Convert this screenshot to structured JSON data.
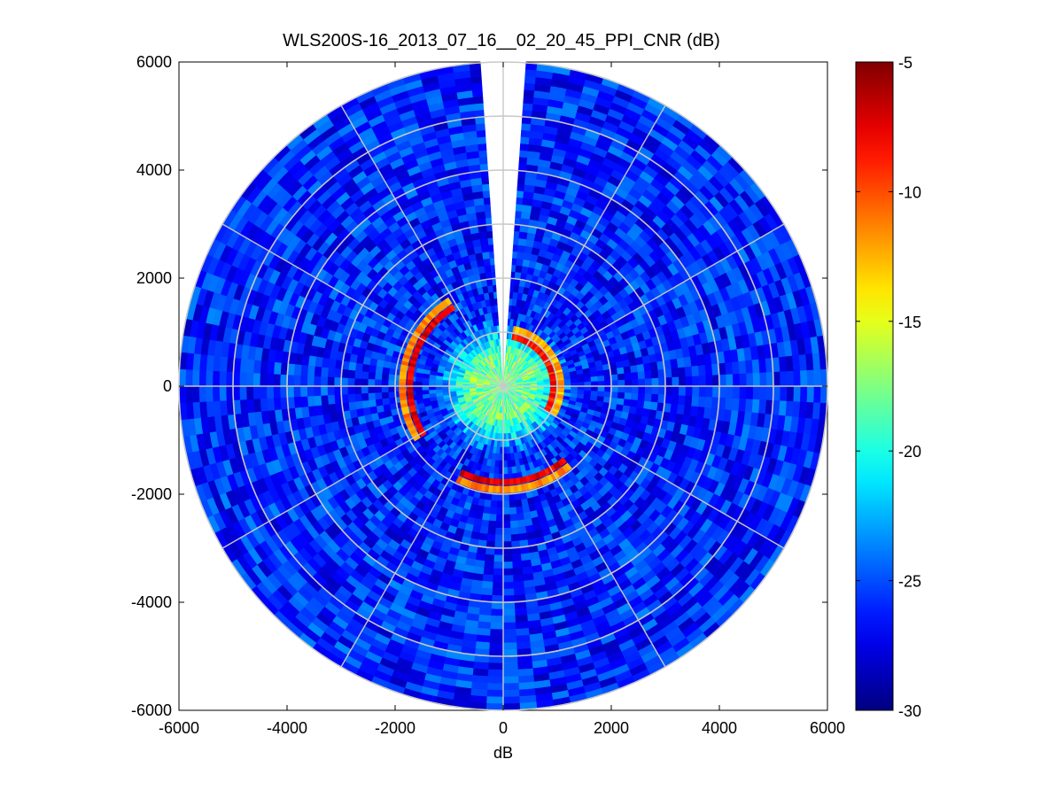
{
  "chart_data": {
    "type": "heatmap",
    "subtype": "polar PPI scan",
    "title": "WLS200S-16_2013_07_16__02_20_45_PPI_CNR (dB)",
    "xlabel": "dB",
    "ylabel": "",
    "xlim": [
      -6000,
      6000
    ],
    "ylim": [
      -6000,
      6000
    ],
    "xticks": [
      -6000,
      -4000,
      -2000,
      0,
      2000,
      4000,
      6000
    ],
    "yticks": [
      -6000,
      -4000,
      -2000,
      0,
      2000,
      4000,
      6000
    ],
    "xtick_labels": [
      "-6000",
      "-4000",
      "-2000",
      "0",
      "2000",
      "4000",
      "6000"
    ],
    "ytick_labels": [
      "6000",
      "4000",
      "2000",
      "0",
      "-2000",
      "-4000",
      "-6000"
    ],
    "max_range": 6000,
    "range_rings": [
      1000,
      2000,
      3000,
      4000,
      5000,
      6000
    ],
    "spoke_angles_deg": [
      0,
      30,
      60,
      90,
      120,
      150,
      180,
      210,
      240,
      270,
      300,
      330
    ],
    "missing_sector_deg": [
      -4,
      4
    ],
    "colorbar": {
      "range": [
        -30,
        -5
      ],
      "ticks": [
        -30,
        -25,
        -20,
        -15,
        -10,
        -5
      ],
      "tick_labels": [
        "-30",
        "-25",
        "-20",
        "-15",
        "-10",
        "-5"
      ],
      "colormap": "jet"
    },
    "field_description": {
      "background_cnr_db": -26,
      "near_core_cnr_db": -18,
      "near_core_radius": 600
    },
    "features": [
      {
        "name": "strong return arc west",
        "cnr_db": -6,
        "radius": 1800,
        "azimuth_from_deg": 238,
        "azimuth_to_deg": 328
      },
      {
        "name": "strong return arc south",
        "cnr_db": -6,
        "radius": 1850,
        "azimuth_from_deg": 140,
        "azimuth_to_deg": 206
      },
      {
        "name": "strong return arc east",
        "cnr_db": -7,
        "radius": 1000,
        "azimuth_from_deg": 10,
        "azimuth_to_deg": 120
      }
    ]
  }
}
